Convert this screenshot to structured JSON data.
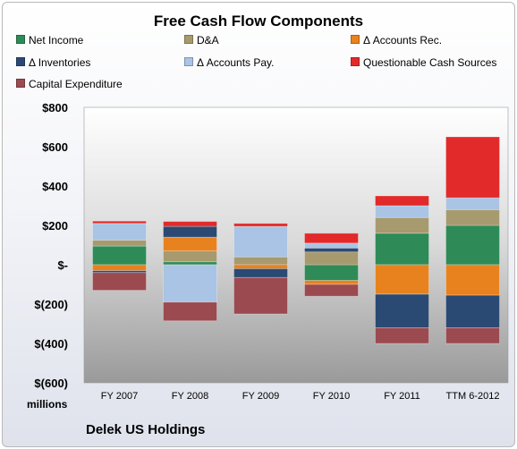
{
  "chart_data": {
    "type": "bar",
    "stacked": true,
    "title": "Free Cash Flow Components",
    "ylabel": "millions",
    "source": "Delek US Holdings",
    "categories": [
      "FY 2007",
      "FY 2008",
      "FY 2009",
      "FY 2010",
      "FY 2011",
      "TTM 6-2012"
    ],
    "ylim": [
      -600,
      800
    ],
    "yticks": [
      {
        "value": 800,
        "label": "$800"
      },
      {
        "value": 600,
        "label": "$600"
      },
      {
        "value": 400,
        "label": "$400"
      },
      {
        "value": 200,
        "label": "$200"
      },
      {
        "value": 0,
        "label": "$-"
      },
      {
        "value": -200,
        "label": "$(200)"
      },
      {
        "value": -400,
        "label": "$(400)"
      },
      {
        "value": -600,
        "label": "$(600)"
      }
    ],
    "grid": false,
    "legend_position": "top",
    "series": [
      {
        "name": "Net Income",
        "color": "#2e8b57",
        "values": [
          95,
          15,
          0,
          -80,
          160,
          200
        ]
      },
      {
        "name": "D&A",
        "color": "#a79a6e",
        "values": [
          30,
          55,
          40,
          65,
          80,
          80
        ]
      },
      {
        "name": "Δ Accounts Rec.",
        "color": "#e8821e",
        "values": [
          -30,
          70,
          -20,
          -20,
          -150,
          -155
        ]
      },
      {
        "name": "Δ Inventories",
        "color": "#2b4a73",
        "values": [
          -10,
          55,
          -45,
          20,
          -170,
          -165
        ]
      },
      {
        "name": "Δ Accounts Pay.",
        "color": "#a9c4e4",
        "values": [
          85,
          -190,
          155,
          25,
          60,
          60
        ]
      },
      {
        "name": "Questionable Cash Sources",
        "color": "#e22a2a",
        "values": [
          12,
          25,
          15,
          50,
          50,
          310
        ]
      },
      {
        "name": "Capital Expenditure",
        "color": "#9b4a50",
        "values": [
          -90,
          -95,
          -185,
          -60,
          -80,
          -80
        ]
      }
    ]
  }
}
